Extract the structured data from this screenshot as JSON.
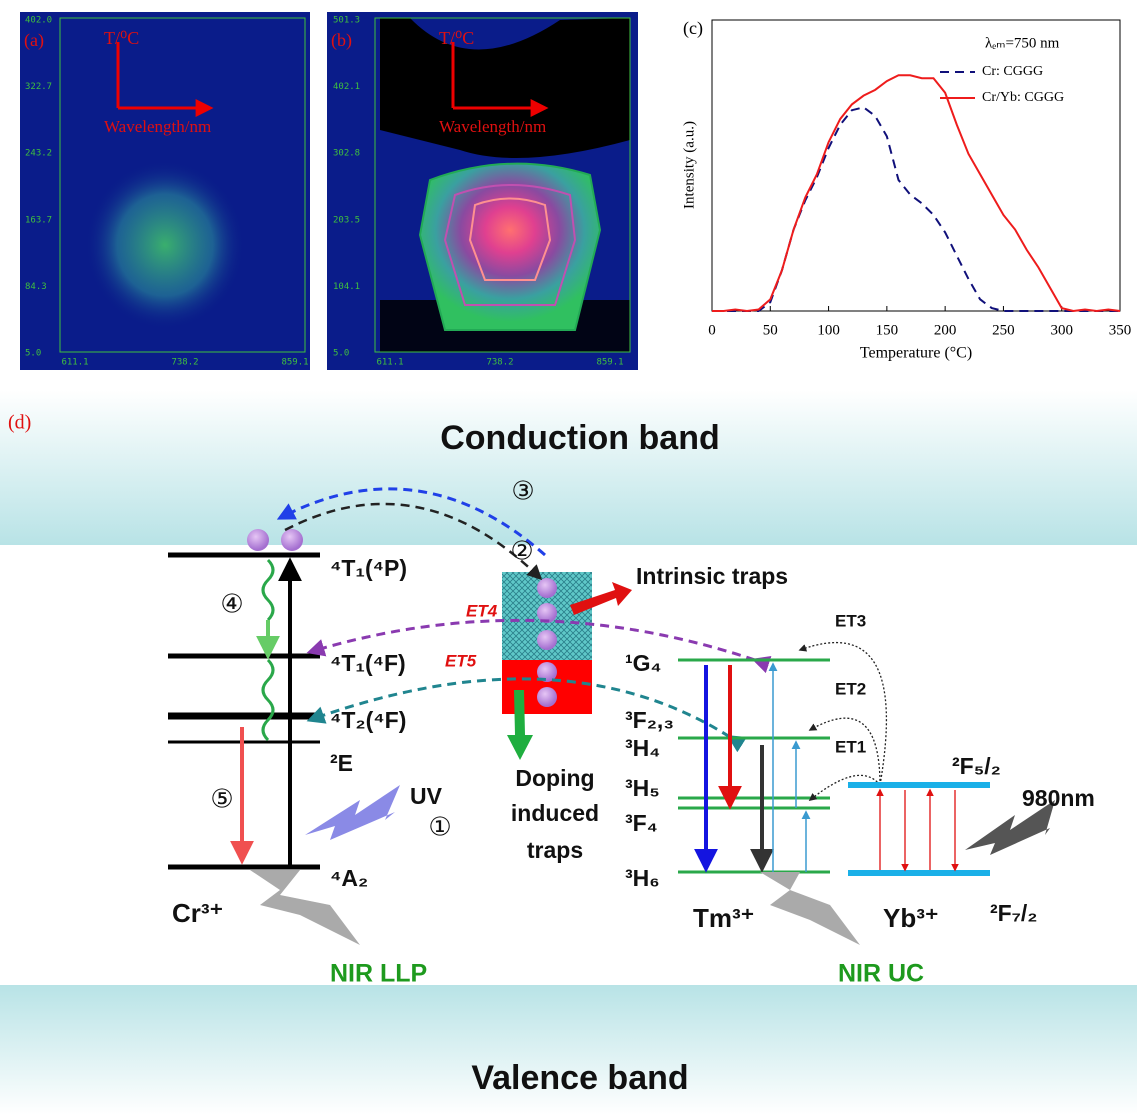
{
  "panel_a": {
    "label": "(a)",
    "axis_y": "T/⁰C",
    "axis_x": "Wavelength/nm",
    "yticks": [
      "402.0",
      "322.7",
      "243.2",
      "163.7",
      "84.3",
      "5.0"
    ],
    "xticks": [
      "611.1",
      "738.2",
      "859.1"
    ]
  },
  "panel_b": {
    "label": "(b)",
    "axis_y": "T/⁰C",
    "axis_x": "Wavelength/nm",
    "yticks": [
      "501.3",
      "402.1",
      "302.8",
      "203.5",
      "104.1",
      "5.0"
    ],
    "xticks": [
      "611.1",
      "738.2",
      "859.1"
    ]
  },
  "chart_data": {
    "type": "line",
    "label": "(c)",
    "annotation": "λₑₘ=750 nm",
    "x_label": "Temperature (°C)",
    "y_label": "Intensity (a.u.)",
    "x": [
      0,
      10,
      20,
      30,
      40,
      50,
      60,
      70,
      80,
      90,
      100,
      110,
      120,
      130,
      140,
      150,
      160,
      170,
      180,
      190,
      200,
      210,
      220,
      230,
      240,
      250,
      260,
      270,
      280,
      290,
      300,
      310,
      320,
      330,
      340,
      350
    ],
    "series": [
      {
        "name": "Cr: CGGG",
        "color": "#10107a",
        "line_style": "dashed",
        "values": [
          0,
          0,
          0,
          0,
          0,
          0.03,
          0.14,
          0.28,
          0.38,
          0.46,
          0.56,
          0.64,
          0.69,
          0.7,
          0.67,
          0.6,
          0.45,
          0.4,
          0.37,
          0.33,
          0.27,
          0.19,
          0.11,
          0.04,
          0.01,
          0,
          0,
          0,
          0,
          0,
          0,
          0,
          0,
          0,
          0,
          0
        ]
      },
      {
        "name": "Cr/Yb: CGGG",
        "color": "#ee1c1c",
        "line_style": "solid",
        "values": [
          0,
          0,
          0.005,
          0,
          0.005,
          0.04,
          0.14,
          0.28,
          0.39,
          0.47,
          0.58,
          0.66,
          0.71,
          0.74,
          0.76,
          0.79,
          0.81,
          0.81,
          0.8,
          0.8,
          0.75,
          0.64,
          0.54,
          0.47,
          0.4,
          0.33,
          0.28,
          0.21,
          0.15,
          0.08,
          0.01,
          0,
          0.005,
          0,
          0.005,
          0
        ]
      }
    ],
    "xlim": [
      0,
      350
    ],
    "xticks": [
      0,
      50,
      100,
      150,
      200,
      250,
      300,
      350
    ],
    "ylim": [
      0,
      1
    ]
  },
  "diagram": {
    "label": "(d)",
    "conduction_band": "Conduction band",
    "valence_band": "Valence band",
    "cr_levels": [
      "⁴T₁(⁴P)",
      "⁴T₁(⁴F)",
      "⁴T₂(⁴F)",
      "²E",
      "⁴A₂"
    ],
    "cr_ion": "Cr³⁺",
    "tm_levels": [
      "¹G₄",
      "³F₂,₃",
      "³H₄",
      "³H₅",
      "³F₄",
      "³H₆"
    ],
    "tm_ion": "Tm³⁺",
    "yb_levels": [
      "²F₅/₂",
      "²F₇/₂"
    ],
    "yb_ion": "Yb³⁺",
    "steps": [
      "①",
      "②",
      "③",
      "④",
      "⑤"
    ],
    "uv": "UV",
    "pump": "980nm",
    "intrinsic_traps": "Intrinsic traps",
    "doping_traps": [
      "Doping",
      "induced",
      "traps"
    ],
    "transfers": [
      "ET1",
      "ET2",
      "ET3",
      "ET4",
      "ET5"
    ],
    "emission": [
      "NIR LLP",
      "NIR UC"
    ]
  }
}
